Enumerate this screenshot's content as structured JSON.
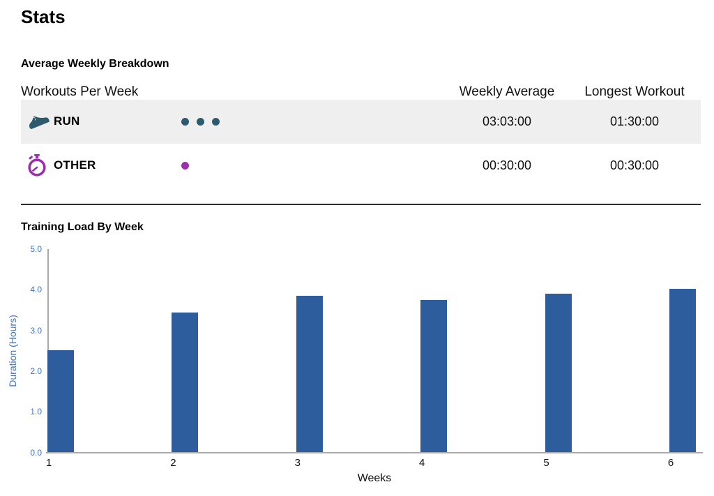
{
  "page": {
    "title": "Stats"
  },
  "breakdown": {
    "heading": "Average Weekly Breakdown",
    "columns": {
      "workouts": "Workouts Per Week",
      "weekly_average": "Weekly Average",
      "longest_workout": "Longest Workout"
    },
    "rows": [
      {
        "sport": "RUN",
        "icon": "run-shoe-icon",
        "color": "#2e5a6e",
        "workouts_per_week": 3,
        "weekly_average": "03:03:00",
        "longest_workout": "01:30:00",
        "highlighted": true
      },
      {
        "sport": "OTHER",
        "icon": "stopwatch-icon",
        "color": "#9b2fae",
        "workouts_per_week": 1,
        "weekly_average": "00:30:00",
        "longest_workout": "00:30:00",
        "highlighted": false
      }
    ]
  },
  "chart_section": {
    "heading": "Training Load By Week"
  },
  "chart_data": {
    "type": "bar",
    "title": "Training Load By Week",
    "xlabel": "Weeks",
    "ylabel": "Duration (Hours)",
    "categories": [
      "1",
      "2",
      "3",
      "4",
      "5",
      "6"
    ],
    "values": [
      2.5,
      3.42,
      3.84,
      3.73,
      3.88,
      4.0
    ],
    "ylim": [
      0,
      5
    ],
    "yticks": [
      "0.0",
      "1.0",
      "2.0",
      "3.0",
      "4.0",
      "5.0"
    ],
    "grid": false,
    "legend": false,
    "bar_color": "#2e5d9e",
    "axis_label_color": "#4472c4",
    "axis_line_color": "#a9a9a9"
  }
}
